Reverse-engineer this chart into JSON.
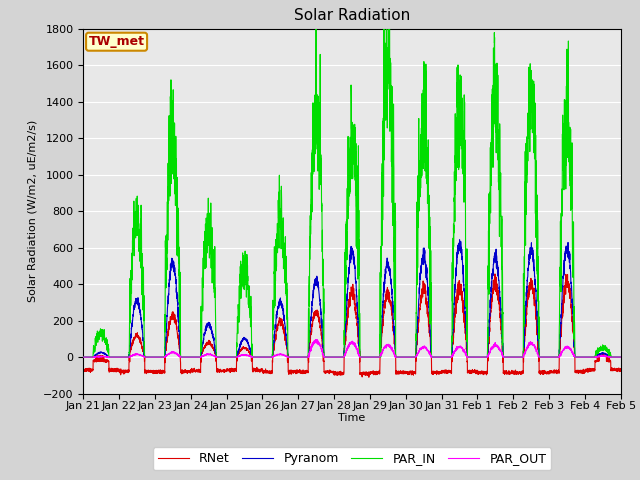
{
  "title": "Solar Radiation",
  "ylabel": "Solar Radiation (W/m2, uE/m2/s)",
  "xlabel": "Time",
  "ylim": [
    -200,
    1800
  ],
  "yticks": [
    -200,
    0,
    200,
    400,
    600,
    800,
    1000,
    1200,
    1400,
    1600,
    1800
  ],
  "fig_bg": "#d4d4d4",
  "plot_bg": "#e8e8e8",
  "colors": {
    "RNet": "#dd0000",
    "Pyranom": "#0000cc",
    "PAR_IN": "#00dd00",
    "PAR_OUT": "#ff00ff"
  },
  "annotation_text": "TW_met",
  "annotation_bg": "#ffffcc",
  "annotation_border": "#cc8800",
  "n_days": 15,
  "points_per_day": 288,
  "xtick_labels": [
    "Jan 21",
    "Jan 22",
    "Jan 23",
    "Jan 24",
    "Jan 25",
    "Jan 26",
    "Jan 27",
    "Jan 28",
    "Jan 29",
    "Jan 30",
    "Jan 31",
    "Feb 1",
    "Feb 2",
    "Feb 3",
    "Feb 4",
    "Feb 5"
  ],
  "par_in_peaks": [
    130,
    740,
    1180,
    720,
    460,
    730,
    1270,
    1150,
    1600,
    1250,
    1360,
    1400,
    1430,
    1310,
    50
  ],
  "pyranom_peaks": [
    25,
    310,
    520,
    180,
    100,
    300,
    420,
    580,
    520,
    560,
    620,
    550,
    590,
    600,
    20
  ],
  "rnet_peaks": [
    5,
    120,
    230,
    80,
    50,
    200,
    250,
    360,
    350,
    370,
    380,
    400,
    400,
    410,
    10
  ],
  "par_out_peaks": [
    3,
    15,
    25,
    15,
    12,
    15,
    90,
    80,
    65,
    55,
    55,
    65,
    75,
    55,
    5
  ],
  "rnet_night": [
    -70,
    -80,
    -80,
    -75,
    -70,
    -80,
    -80,
    -90,
    -85,
    -85,
    -80,
    -85,
    -85,
    -80,
    -70
  ],
  "title_fontsize": 11,
  "label_fontsize": 8,
  "tick_fontsize": 8,
  "legend_fontsize": 9,
  "linewidth": 0.8
}
